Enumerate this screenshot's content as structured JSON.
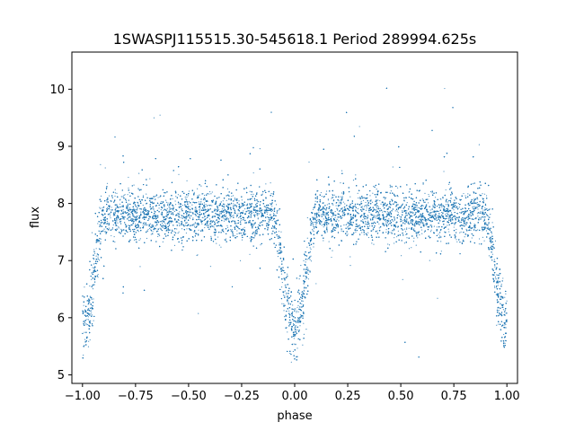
{
  "chart_data": {
    "type": "scatter",
    "title": "1SWASPJ115515.30-545618.1 Period 289994.625s",
    "xlabel": "phase",
    "ylabel": "flux",
    "xlim": [
      -1.05,
      1.05
    ],
    "ylim": [
      4.85,
      10.65
    ],
    "xticks": [
      -1.0,
      -0.75,
      -0.5,
      -0.25,
      0.0,
      0.25,
      0.5,
      0.75,
      1.0
    ],
    "xtick_labels": [
      "−1.00",
      "−0.75",
      "−0.50",
      "−0.25",
      "0.00",
      "0.25",
      "0.50",
      "0.75",
      "1.00"
    ],
    "yticks": [
      5,
      6,
      7,
      8,
      9,
      10
    ],
    "ytick_labels": [
      "5",
      "6",
      "7",
      "8",
      "9",
      "10"
    ],
    "grid": false,
    "marker_color": "#1f77b4",
    "series": [
      {
        "x_range": [
          -1.0,
          1.0
        ],
        "baseline_flux": 7.8,
        "baseline_scatter": 0.22,
        "eclipse_phases": [
          -1.0,
          0.0,
          1.0
        ],
        "eclipse_min_flux": 5.9,
        "eclipse_half_width": 0.1,
        "point_count": 16000
      }
    ]
  }
}
